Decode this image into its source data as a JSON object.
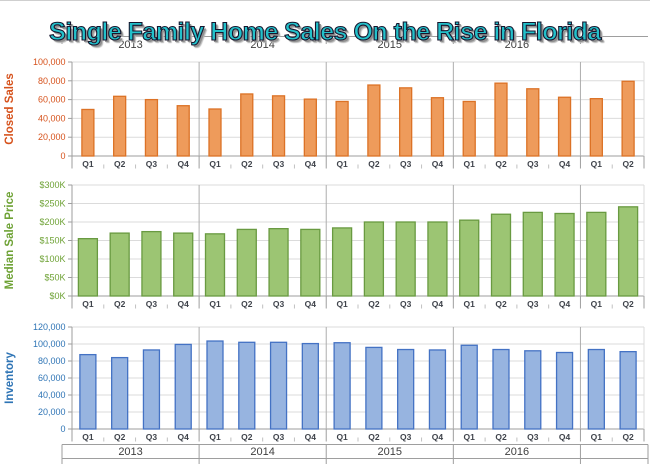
{
  "title": {
    "text": "Single Family Home Sales On the Rise in Florida",
    "fill_color": "#23c1ca",
    "outline_color": "#16162e",
    "shadow_color": "#8f8f8f"
  },
  "year_axis": {
    "groups": [
      {
        "label": "2013",
        "span": 4
      },
      {
        "label": "2014",
        "span": 4
      },
      {
        "label": "2015",
        "span": 4
      },
      {
        "label": "2016",
        "span": 4
      },
      {
        "label": "",
        "span": 2
      }
    ],
    "text_color": "#3f3f3f"
  },
  "chart_data": [
    {
      "type": "bar",
      "title": "Closed Sales",
      "ylabel": "Closed Sales",
      "xlabel": "",
      "ylim": [
        0,
        100000
      ],
      "ytick_step": 20000,
      "ytick_labels": [
        "0",
        "20,000",
        "40,000",
        "60,000",
        "80,000",
        "100,000"
      ],
      "grid": true,
      "legend": "none",
      "categories": [
        "Q1",
        "Q2",
        "Q3",
        "Q4",
        "Q1",
        "Q2",
        "Q3",
        "Q4",
        "Q1",
        "Q2",
        "Q3",
        "Q4",
        "Q1",
        "Q2",
        "Q3",
        "Q4",
        "Q1",
        "Q2"
      ],
      "values": [
        49500,
        63500,
        60000,
        53500,
        50000,
        66000,
        64000,
        60500,
        58000,
        75500,
        72500,
        62000,
        58000,
        77500,
        71500,
        62500,
        61000,
        79500
      ],
      "colors": {
        "bar_fill": "#ee9b5b",
        "bar_stroke": "#dc7226",
        "label": "#d6521c"
      }
    },
    {
      "type": "bar",
      "title": "Median Sale Price",
      "ylabel": "Median Sale Price",
      "xlabel": "",
      "ylim": [
        0,
        300000
      ],
      "ytick_step": 50000,
      "ytick_labels": [
        "$0K",
        "$50K",
        "$100K",
        "$150K",
        "$200K",
        "$250K",
        "$300K"
      ],
      "grid": true,
      "legend": "none",
      "categories": [
        "Q1",
        "Q2",
        "Q3",
        "Q4",
        "Q1",
        "Q2",
        "Q3",
        "Q4",
        "Q1",
        "Q2",
        "Q3",
        "Q4",
        "Q1",
        "Q2",
        "Q3",
        "Q4",
        "Q1",
        "Q2"
      ],
      "values": [
        155000,
        170000,
        174000,
        170000,
        168000,
        180000,
        182000,
        180000,
        184000,
        200000,
        200000,
        200000,
        205000,
        221000,
        226000,
        223000,
        226000,
        241000
      ],
      "colors": {
        "bar_fill": "#9cc573",
        "bar_stroke": "#699a41",
        "label": "#6ea235"
      }
    },
    {
      "type": "bar",
      "title": "Inventory",
      "ylabel": "Inventory",
      "xlabel": "",
      "ylim": [
        0,
        120000
      ],
      "ytick_step": 20000,
      "ytick_labels": [
        "0",
        "20,000",
        "40,000",
        "60,000",
        "80,000",
        "100,000",
        "120,000"
      ],
      "grid": true,
      "legend": "none",
      "categories": [
        "Q1",
        "Q2",
        "Q3",
        "Q4",
        "Q1",
        "Q2",
        "Q3",
        "Q4",
        "Q1",
        "Q2",
        "Q3",
        "Q4",
        "Q1",
        "Q2",
        "Q3",
        "Q4",
        "Q1",
        "Q2"
      ],
      "values": [
        87500,
        84000,
        93000,
        99500,
        103500,
        102000,
        102000,
        100500,
        101500,
        96000,
        93500,
        93000,
        98500,
        93500,
        92000,
        90000,
        93500,
        91000
      ],
      "colors": {
        "bar_fill": "#97b4e0",
        "bar_stroke": "#4472c4",
        "label": "#2e74b5"
      }
    }
  ]
}
